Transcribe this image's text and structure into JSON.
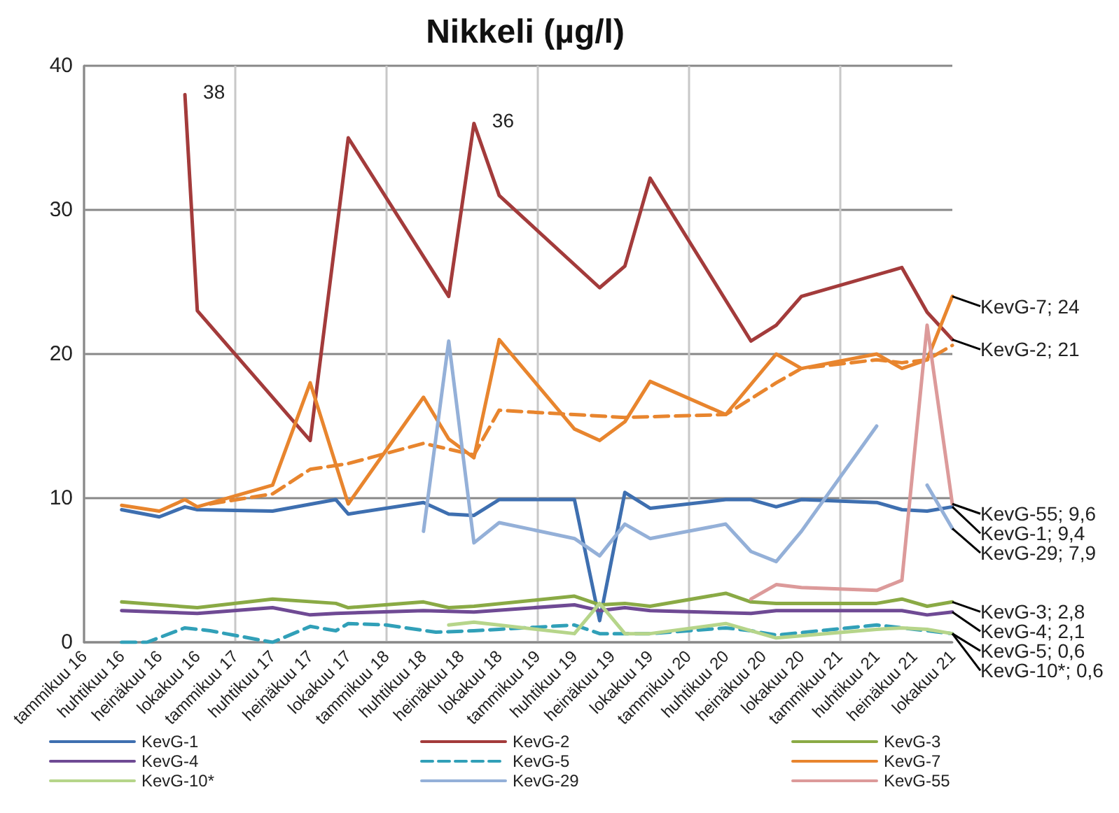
{
  "chart_data": {
    "type": "line",
    "title": "Nikkeli (µg/l)",
    "xlim": [
      "2016-01",
      "2021-10"
    ],
    "xticks": [
      {
        "value": "2016-01",
        "label": "tammikuu 16"
      },
      {
        "value": "2016-04",
        "label": "huhtikuu 16"
      },
      {
        "value": "2016-07",
        "label": "heinäkuu 16"
      },
      {
        "value": "2016-10",
        "label": "lokakuu 16"
      },
      {
        "value": "2017-01",
        "label": "tammikuu 17"
      },
      {
        "value": "2017-04",
        "label": "huhtikuu 17"
      },
      {
        "value": "2017-07",
        "label": "heinäkuu 17"
      },
      {
        "value": "2017-10",
        "label": "lokakuu 17"
      },
      {
        "value": "2018-01",
        "label": "tammikuu 18"
      },
      {
        "value": "2018-04",
        "label": "huhtikuu 18"
      },
      {
        "value": "2018-07",
        "label": "heinäkuu 18"
      },
      {
        "value": "2018-10",
        "label": "lokakuu 18"
      },
      {
        "value": "2019-01",
        "label": "tammikuu 19"
      },
      {
        "value": "2019-04",
        "label": "huhtikuu 19"
      },
      {
        "value": "2019-07",
        "label": "heinäkuu 19"
      },
      {
        "value": "2019-10",
        "label": "lokakuu 19"
      },
      {
        "value": "2020-01",
        "label": "tammikuu 20"
      },
      {
        "value": "2020-04",
        "label": "huhtikuu 20"
      },
      {
        "value": "2020-07",
        "label": "heinäkuu 20"
      },
      {
        "value": "2020-10",
        "label": "lokakuu 20"
      },
      {
        "value": "2021-01",
        "label": "tammikuu 21"
      },
      {
        "value": "2021-04",
        "label": "huhtikuu 21"
      },
      {
        "value": "2021-07",
        "label": "heinäkuu 21"
      },
      {
        "value": "2021-10",
        "label": "lokakuu 21"
      }
    ],
    "ylim": [
      0,
      40
    ],
    "yticks": [
      0,
      10,
      20,
      30,
      40
    ],
    "grid": true,
    "legend": "bottom",
    "marker": "none",
    "series": [
      {
        "name": "KevG-1",
        "color": "#3e6fb0",
        "x": [
          "2016-04",
          "2016-07",
          "2016-09",
          "2016-10",
          "2017-04",
          "2017-09",
          "2017-10",
          "2018-04",
          "2018-06",
          "2018-08",
          "2018-10",
          "2019-04",
          "2019-06",
          "2019-08",
          "2019-10",
          "2020-04",
          "2020-06",
          "2020-08",
          "2020-10",
          "2021-04",
          "2021-06",
          "2021-08",
          "2021-10"
        ],
        "values": [
          9.2,
          8.7,
          9.4,
          9.2,
          9.1,
          9.9,
          8.9,
          9.7,
          8.9,
          8.8,
          9.9,
          9.9,
          1.5,
          10.4,
          9.3,
          9.9,
          9.9,
          9.4,
          9.9,
          9.7,
          9.2,
          9.1,
          9.4
        ],
        "value_labels": [
          null,
          null,
          null,
          null,
          null,
          null,
          null,
          null,
          null,
          null,
          null,
          null,
          null,
          null,
          null,
          null,
          null,
          null,
          null,
          null,
          null,
          null,
          "KevG-1; 9,4"
        ]
      },
      {
        "name": "KevG-2",
        "color": "#a33b3b",
        "x": [
          "2016-09",
          "2016-10",
          "2017-07",
          "2017-10",
          "2018-06",
          "2018-08",
          "2018-10",
          "2019-06",
          "2019-08",
          "2019-10",
          "2020-06",
          "2020-08",
          "2020-10",
          "2021-06",
          "2021-08",
          "2021-10"
        ],
        "values": [
          38,
          23,
          14,
          35,
          24,
          36,
          31,
          24.6,
          26.1,
          32.2,
          20.9,
          22,
          24,
          26,
          22.9,
          21
        ],
        "value_labels": [
          "38",
          null,
          null,
          null,
          null,
          "36",
          null,
          null,
          null,
          null,
          null,
          null,
          null,
          null,
          null,
          "KevG-2; 21"
        ]
      },
      {
        "name": "KevG-3",
        "color": "#8aaa45",
        "x": [
          "2016-04",
          "2016-10",
          "2017-04",
          "2017-09",
          "2017-10",
          "2018-04",
          "2018-06",
          "2018-08",
          "2019-04",
          "2019-06",
          "2019-08",
          "2019-10",
          "2020-04",
          "2020-06",
          "2020-08",
          "2021-04",
          "2021-06",
          "2021-08",
          "2021-10"
        ],
        "values": [
          2.8,
          2.4,
          3.0,
          2.7,
          2.4,
          2.8,
          2.4,
          2.5,
          3.2,
          2.6,
          2.7,
          2.5,
          3.4,
          2.8,
          2.7,
          2.7,
          3.0,
          2.5,
          2.8
        ],
        "value_labels": [
          null,
          null,
          null,
          null,
          null,
          null,
          null,
          null,
          null,
          null,
          null,
          null,
          null,
          null,
          null,
          null,
          null,
          null,
          "KevG-3; 2,8"
        ]
      },
      {
        "name": "KevG-4",
        "color": "#6f4a94",
        "x": [
          "2016-04",
          "2016-10",
          "2017-04",
          "2017-07",
          "2017-09",
          "2018-04",
          "2018-08",
          "2019-04",
          "2019-06",
          "2019-08",
          "2019-10",
          "2020-06",
          "2020-08",
          "2021-06",
          "2021-08",
          "2021-10"
        ],
        "values": [
          2.2,
          2.0,
          2.4,
          1.9,
          2.0,
          2.2,
          2.1,
          2.6,
          2.2,
          2.4,
          2.2,
          2.0,
          2.2,
          2.2,
          1.9,
          2.1
        ],
        "value_labels": [
          null,
          null,
          null,
          null,
          null,
          null,
          null,
          null,
          null,
          null,
          null,
          null,
          null,
          null,
          null,
          "KevG-4; 2,1"
        ]
      },
      {
        "name": "KevG-5",
        "color": "#31a0b8",
        "line_style": "dashed",
        "x": [
          "2016-04",
          "2016-06",
          "2016-09",
          "2016-11",
          "2017-04",
          "2017-07",
          "2017-09",
          "2017-10",
          "2018-01",
          "2018-05",
          "2018-08",
          "2018-10",
          "2019-04",
          "2019-06",
          "2019-10",
          "2020-04",
          "2020-06",
          "2020-08",
          "2021-04",
          "2021-08",
          "2021-10"
        ],
        "values": [
          0,
          0,
          1.0,
          0.8,
          0,
          1.1,
          0.8,
          1.3,
          1.2,
          0.7,
          0.8,
          0.9,
          1.2,
          0.6,
          0.6,
          1.0,
          0.8,
          0.5,
          1.2,
          0.8,
          0.6
        ],
        "value_labels": [
          null,
          null,
          null,
          null,
          null,
          null,
          null,
          null,
          null,
          null,
          null,
          null,
          null,
          null,
          null,
          null,
          null,
          null,
          null,
          null,
          "KevG-5; 0,6"
        ]
      },
      {
        "name": "KevG-7",
        "color": "#e8852e",
        "x": [
          "2016-04",
          "2016-07",
          "2016-09",
          "2016-10",
          "2017-04",
          "2017-07",
          "2017-10",
          "2018-04",
          "2018-06",
          "2018-08",
          "2018-10",
          "2019-04",
          "2019-06",
          "2019-08",
          "2019-10",
          "2020-04",
          "2020-08",
          "2020-10",
          "2021-04",
          "2021-06",
          "2021-08",
          "2021-10"
        ],
        "values": [
          9.5,
          9.1,
          9.9,
          9.4,
          10.9,
          18,
          9.6,
          17,
          14.1,
          12.8,
          21,
          14.8,
          14,
          15.3,
          18.1,
          15.8,
          20,
          19,
          20,
          19,
          19.6,
          24
        ],
        "value_labels": [
          null,
          null,
          null,
          null,
          null,
          null,
          null,
          null,
          null,
          null,
          null,
          null,
          null,
          null,
          null,
          null,
          null,
          null,
          null,
          null,
          null,
          "KevG-7; 24"
        ]
      },
      {
        "color": "#e8852e",
        "line_style": "dashed",
        "x": [
          "2016-11",
          "2017-04",
          "2017-07",
          "2017-10",
          "2018-04",
          "2018-08",
          "2018-10",
          "2019-04",
          "2019-08",
          "2020-04",
          "2020-08",
          "2020-10",
          "2021-04",
          "2021-06",
          "2021-08",
          "2021-10"
        ],
        "values": [
          9.6,
          10.3,
          12,
          12.4,
          13.8,
          13,
          16.1,
          15.8,
          15.6,
          15.8,
          18,
          19,
          19.6,
          19.4,
          19.6,
          20.6
        ]
      },
      {
        "name": "KevG-10*",
        "color": "#b6d58a",
        "x": [
          "2018-06",
          "2018-08",
          "2019-04",
          "2019-06",
          "2019-08",
          "2019-10",
          "2020-04",
          "2020-08",
          "2021-04",
          "2021-06",
          "2021-08",
          "2021-10"
        ],
        "values": [
          1.2,
          1.4,
          0.6,
          2.7,
          0.6,
          0.6,
          1.3,
          0.3,
          0.9,
          1.0,
          0.9,
          0.6
        ],
        "value_labels": [
          null,
          null,
          null,
          null,
          null,
          null,
          null,
          null,
          null,
          null,
          null,
          "KevG-10*; 0,6"
        ]
      },
      {
        "name": "KevG-29",
        "color": "#94b0d8",
        "x": [
          "2018-04",
          "2018-06",
          "2018-08",
          "2018-10",
          "2019-04",
          "2019-06",
          "2019-08",
          "2019-10",
          "2020-04",
          "2020-06",
          "2020-08",
          "2020-10",
          "2021-04",
          "2021-06",
          "2021-08",
          "2021-10"
        ],
        "values": [
          7.7,
          20.9,
          6.9,
          8.3,
          7.2,
          6.0,
          8.2,
          7.2,
          8.2,
          6.3,
          5.6,
          7.7,
          15.0,
          null,
          10.9,
          7.9
        ],
        "value_labels": [
          null,
          null,
          null,
          null,
          null,
          null,
          null,
          null,
          null,
          null,
          null,
          null,
          null,
          null,
          null,
          "KevG-29; 7,9"
        ]
      },
      {
        "name": "KevG-55",
        "color": "#dc9a9a",
        "x": [
          "2020-06",
          "2020-08",
          "2020-10",
          "2021-04",
          "2021-06",
          "2021-08",
          "2021-10"
        ],
        "values": [
          3.0,
          4.0,
          3.8,
          3.6,
          4.3,
          22,
          9.6
        ],
        "value_labels": [
          null,
          null,
          null,
          null,
          null,
          null,
          "KevG-55; 9,6"
        ]
      }
    ]
  }
}
